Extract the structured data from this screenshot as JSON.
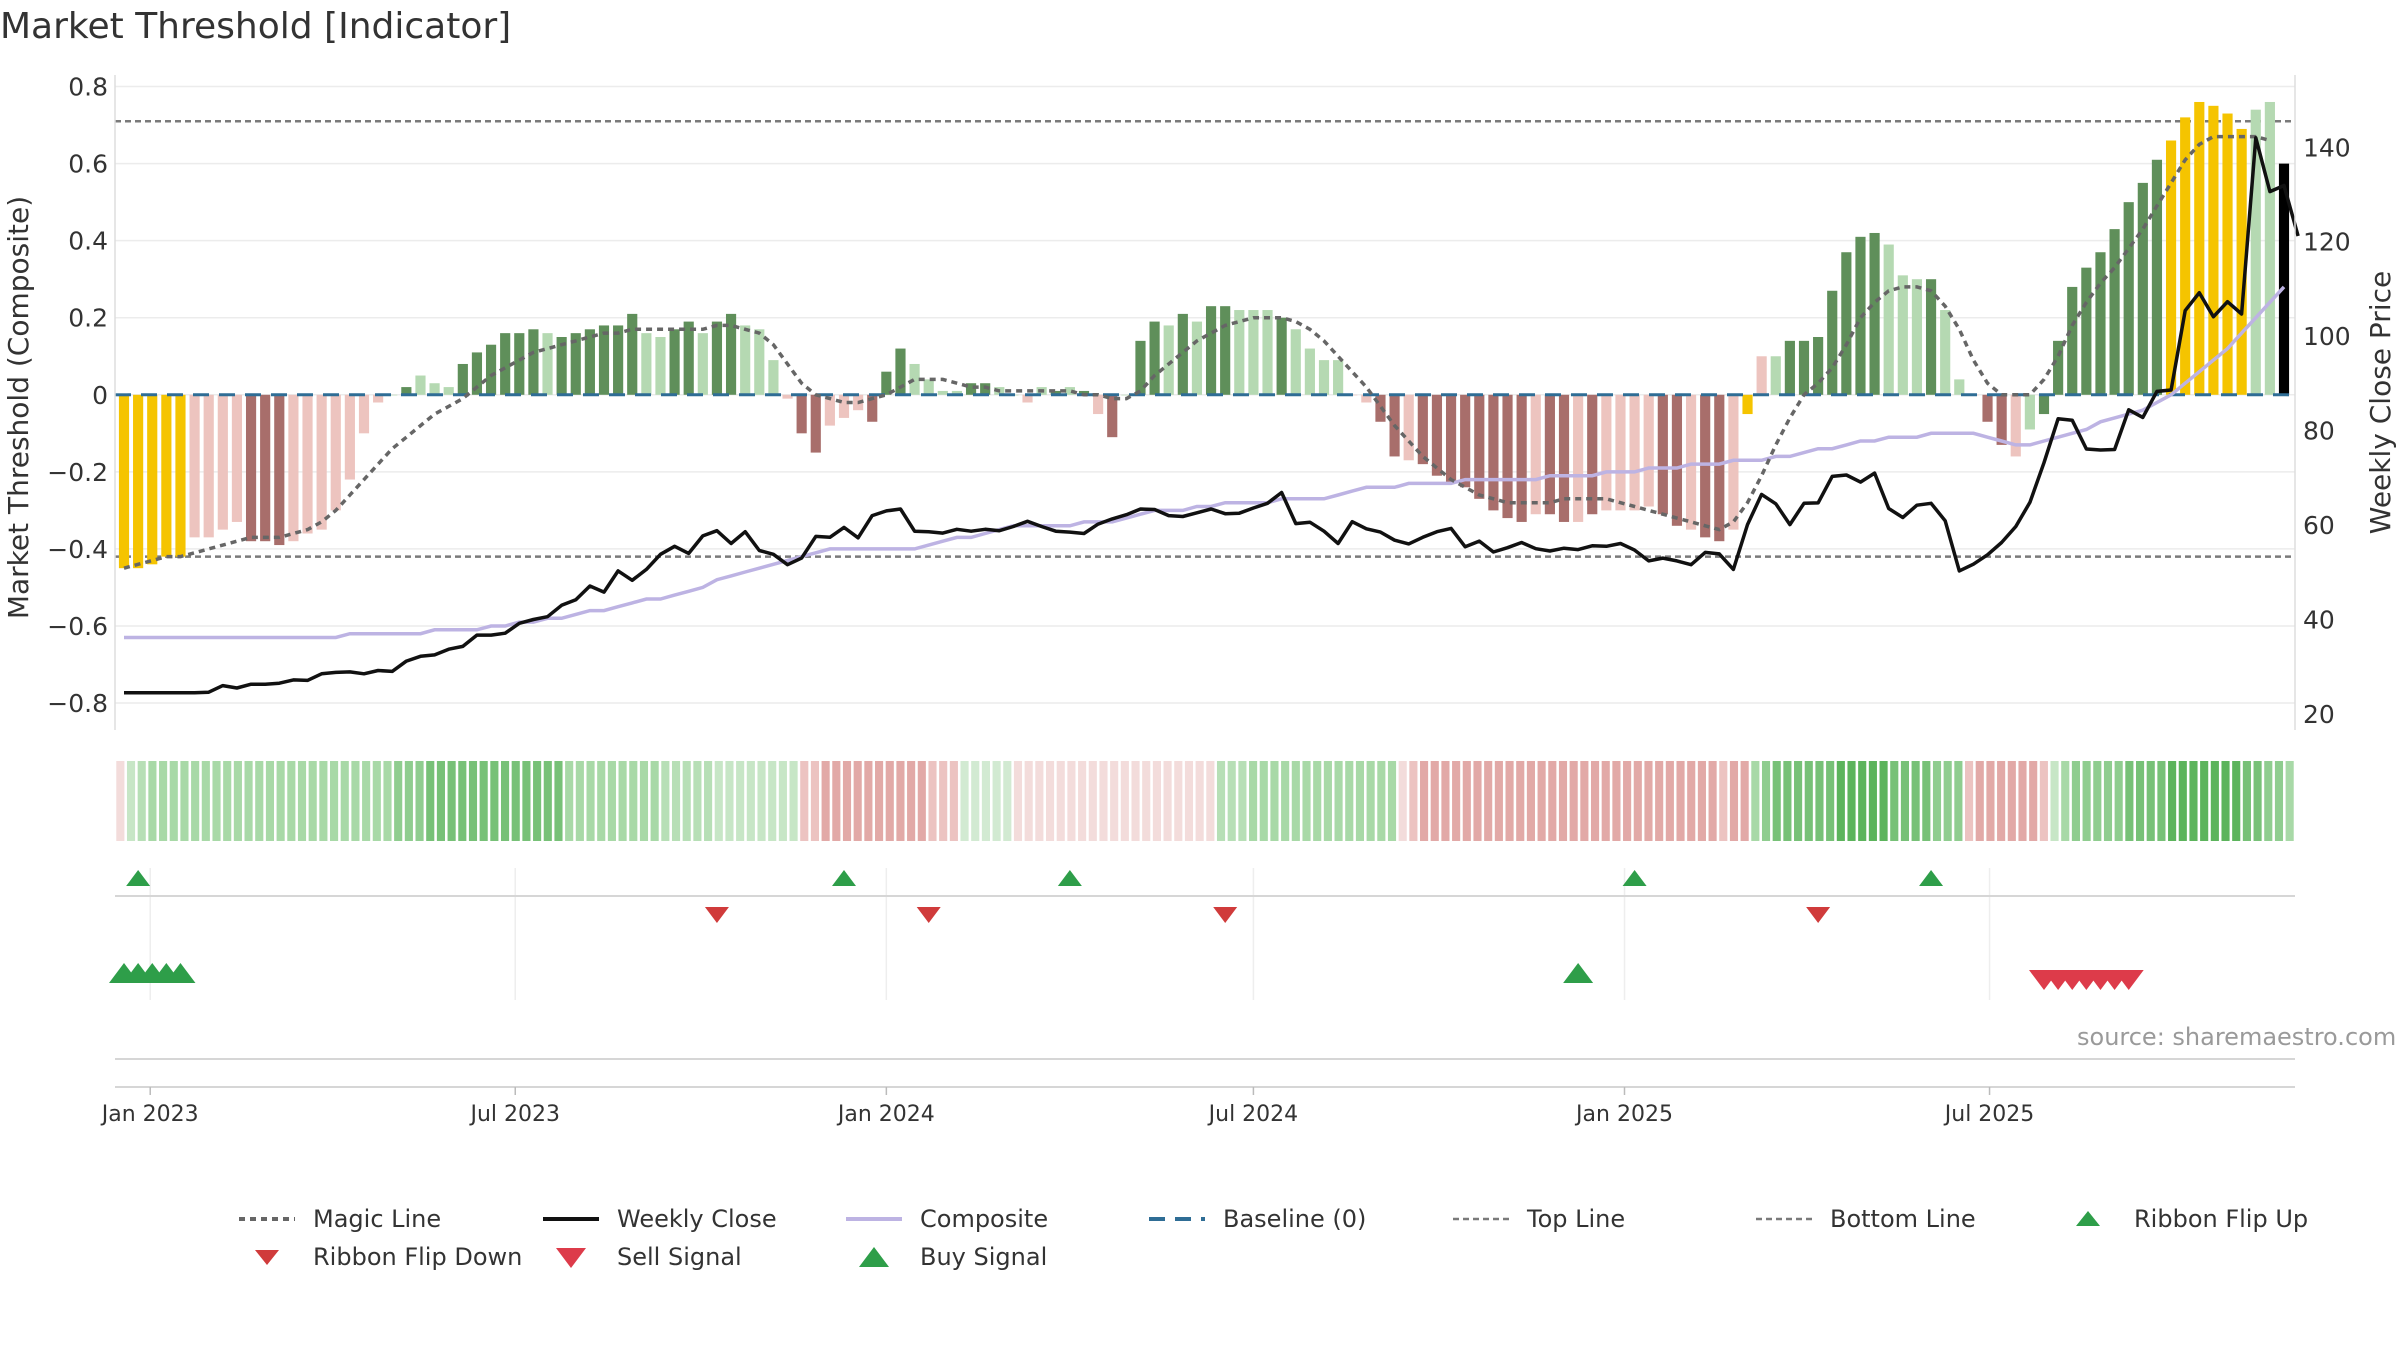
{
  "chart_data": {
    "type": "bar",
    "title": "Market Threshold [Indicator]",
    "ylabel": "Market Threshold (Composite)",
    "y2label": "Weekly Close Price",
    "ylim": [
      -0.87,
      0.83
    ],
    "y2lim": [
      16.6,
      155.3
    ],
    "yticks": [
      "0.8",
      "0.6",
      "0.4",
      "0.2",
      "0",
      "−0.2",
      "−0.4",
      "−0.6",
      "−0.8"
    ],
    "yticks_values": [
      0.8,
      0.6,
      0.4,
      0.2,
      0,
      -0.2,
      -0.4,
      -0.6,
      -0.8
    ],
    "y2ticks": [
      "140",
      "120",
      "100",
      "80",
      "60",
      "40",
      "20"
    ],
    "y2ticks_values": [
      140,
      120,
      100,
      80,
      60,
      40,
      20
    ],
    "xticks": [
      "Jan 2023",
      "Jul 2023",
      "Jan 2024",
      "Jul 2024",
      "Jan 2025",
      "Jul 2025"
    ],
    "xticks_dates": [
      "2023-01-01",
      "2023-07-01",
      "2024-01-01",
      "2024-07-01",
      "2025-01-01",
      "2025-07-01"
    ],
    "start_date": "2022-12-19",
    "interval_days": 7,
    "source": "source: sharemaestro.com",
    "top_line": 0.71,
    "bottom_line": -0.42,
    "bars": [
      -0.45,
      -0.45,
      -0.44,
      -0.42,
      -0.42,
      -0.37,
      -0.37,
      -0.35,
      -0.33,
      -0.38,
      -0.38,
      -0.39,
      -0.38,
      -0.36,
      -0.35,
      -0.3,
      -0.22,
      -0.1,
      -0.02,
      0.0,
      0.02,
      0.05,
      0.03,
      0.02,
      0.08,
      0.11,
      0.13,
      0.16,
      0.16,
      0.17,
      0.16,
      0.15,
      0.16,
      0.17,
      0.18,
      0.18,
      0.21,
      0.16,
      0.15,
      0.17,
      0.19,
      0.16,
      0.19,
      0.21,
      0.18,
      0.17,
      0.09,
      -0.01,
      -0.1,
      -0.15,
      -0.08,
      -0.06,
      -0.04,
      -0.07,
      0.06,
      0.12,
      0.08,
      0.04,
      0.01,
      0.01,
      0.03,
      0.03,
      0.02,
      0.0,
      -0.02,
      0.02,
      0.01,
      0.02,
      0.01,
      -0.05,
      -0.11,
      0.0,
      0.14,
      0.19,
      0.18,
      0.21,
      0.19,
      0.23,
      0.23,
      0.22,
      0.22,
      0.22,
      0.2,
      0.17,
      0.12,
      0.09,
      0.09,
      0.0,
      -0.02,
      -0.07,
      -0.16,
      -0.17,
      -0.18,
      -0.21,
      -0.23,
      -0.24,
      -0.27,
      -0.3,
      -0.32,
      -0.33,
      -0.31,
      -0.31,
      -0.33,
      -0.33,
      -0.31,
      -0.3,
      -0.3,
      -0.3,
      -0.29,
      -0.31,
      -0.34,
      -0.35,
      -0.37,
      -0.38,
      -0.35,
      -0.05,
      0.1,
      0.1,
      0.14,
      0.14,
      0.15,
      0.27,
      0.37,
      0.41,
      0.42,
      0.39,
      0.31,
      0.3,
      0.3,
      0.22,
      0.04,
      0.0,
      -0.07,
      -0.13,
      -0.16,
      -0.09,
      -0.05,
      0.14,
      0.28,
      0.33,
      0.37,
      0.43,
      0.5,
      0.55,
      0.61,
      0.66,
      0.72,
      0.76,
      0.75,
      0.73,
      0.69,
      0.74,
      0.76,
      0.6
    ],
    "bar_colors": [
      "#f5c400",
      "#f5c400",
      "#f5c400",
      "#f5c400",
      "#f5c400",
      "#edc4bf",
      "#edc4bf",
      "#edc4bf",
      "#edc4bf",
      "#a86e6b",
      "#a86e6b",
      "#a86e6b",
      "#edc4bf",
      "#edc4bf",
      "#edc4bf",
      "#edc4bf",
      "#edc4bf",
      "#edc4bf",
      "#edc4bf",
      "#b5d9b2",
      "#5f8f5a",
      "#b5d9b2",
      "#b5d9b2",
      "#b5d9b2",
      "#5f8f5a",
      "#5f8f5a",
      "#5f8f5a",
      "#5f8f5a",
      "#5f8f5a",
      "#5f8f5a",
      "#b5d9b2",
      "#5f8f5a",
      "#5f8f5a",
      "#5f8f5a",
      "#5f8f5a",
      "#5f8f5a",
      "#5f8f5a",
      "#b5d9b2",
      "#b5d9b2",
      "#5f8f5a",
      "#5f8f5a",
      "#b5d9b2",
      "#5f8f5a",
      "#5f8f5a",
      "#b5d9b2",
      "#b5d9b2",
      "#b5d9b2",
      "#edc4bf",
      "#a86e6b",
      "#a86e6b",
      "#edc4bf",
      "#edc4bf",
      "#edc4bf",
      "#a86e6b",
      "#5f8f5a",
      "#5f8f5a",
      "#b5d9b2",
      "#b5d9b2",
      "#b5d9b2",
      "#b5d9b2",
      "#5f8f5a",
      "#5f8f5a",
      "#b5d9b2",
      "#b5d9b2",
      "#edc4bf",
      "#b5d9b2",
      "#5f8f5a",
      "#b5d9b2",
      "#5f8f5a",
      "#edc4bf",
      "#a86e6b",
      "#b5d9b2",
      "#5f8f5a",
      "#5f8f5a",
      "#b5d9b2",
      "#5f8f5a",
      "#b5d9b2",
      "#5f8f5a",
      "#5f8f5a",
      "#b5d9b2",
      "#b5d9b2",
      "#b5d9b2",
      "#5f8f5a",
      "#b5d9b2",
      "#b5d9b2",
      "#b5d9b2",
      "#b5d9b2",
      "#edc4bf",
      "#edc4bf",
      "#a86e6b",
      "#a86e6b",
      "#edc4bf",
      "#a86e6b",
      "#a86e6b",
      "#a86e6b",
      "#a86e6b",
      "#a86e6b",
      "#a86e6b",
      "#a86e6b",
      "#a86e6b",
      "#edc4bf",
      "#a86e6b",
      "#a86e6b",
      "#edc4bf",
      "#a86e6b",
      "#edc4bf",
      "#edc4bf",
      "#edc4bf",
      "#edc4bf",
      "#a86e6b",
      "#a86e6b",
      "#edc4bf",
      "#a86e6b",
      "#a86e6b",
      "#edc4bf",
      "#f5c400",
      "#edc4bf",
      "#b5d9b2",
      "#5f8f5a",
      "#5f8f5a",
      "#5f8f5a",
      "#5f8f5a",
      "#5f8f5a",
      "#5f8f5a",
      "#5f8f5a",
      "#b5d9b2",
      "#b5d9b2",
      "#b5d9b2",
      "#5f8f5a",
      "#b5d9b2",
      "#b5d9b2",
      "#edc4bf",
      "#a86e6b",
      "#a86e6b",
      "#edc4bf",
      "#b5d9b2",
      "#5f8f5a",
      "#5f8f5a",
      "#5f8f5a",
      "#5f8f5a",
      "#5f8f5a",
      "#5f8f5a",
      "#5f8f5a",
      "#5f8f5a",
      "#5f8f5a",
      "#f5c400",
      "#f5c400",
      "#f5c400",
      "#f5c400",
      "#f5c400",
      "#f5c400",
      "#b5d9b2",
      "#b5d9b2"
    ],
    "magic_line": [
      -0.45,
      -0.44,
      -0.43,
      -0.42,
      -0.42,
      -0.41,
      -0.4,
      -0.39,
      -0.38,
      -0.37,
      -0.37,
      -0.37,
      -0.36,
      -0.35,
      -0.33,
      -0.3,
      -0.26,
      -0.22,
      -0.18,
      -0.14,
      -0.11,
      -0.08,
      -0.05,
      -0.03,
      -0.01,
      0.02,
      0.05,
      0.07,
      0.09,
      0.11,
      0.12,
      0.13,
      0.14,
      0.15,
      0.16,
      0.16,
      0.17,
      0.17,
      0.17,
      0.17,
      0.17,
      0.17,
      0.18,
      0.18,
      0.17,
      0.16,
      0.13,
      0.08,
      0.03,
      0.0,
      -0.01,
      -0.02,
      -0.02,
      -0.01,
      0.0,
      0.02,
      0.04,
      0.04,
      0.04,
      0.03,
      0.02,
      0.02,
      0.01,
      0.01,
      0.01,
      0.01,
      0.01,
      0.01,
      0.0,
      0.0,
      -0.01,
      -0.01,
      0.01,
      0.05,
      0.08,
      0.11,
      0.14,
      0.16,
      0.18,
      0.19,
      0.2,
      0.2,
      0.2,
      0.19,
      0.17,
      0.14,
      0.1,
      0.06,
      0.02,
      -0.03,
      -0.08,
      -0.12,
      -0.16,
      -0.19,
      -0.22,
      -0.24,
      -0.26,
      -0.27,
      -0.28,
      -0.28,
      -0.28,
      -0.28,
      -0.27,
      -0.27,
      -0.27,
      -0.27,
      -0.28,
      -0.29,
      -0.3,
      -0.31,
      -0.32,
      -0.33,
      -0.34,
      -0.35,
      -0.33,
      -0.28,
      -0.21,
      -0.13,
      -0.06,
      0.0,
      0.03,
      0.07,
      0.13,
      0.2,
      0.24,
      0.27,
      0.28,
      0.28,
      0.27,
      0.23,
      0.17,
      0.09,
      0.03,
      0.0,
      0.0,
      0.0,
      0.04,
      0.1,
      0.18,
      0.24,
      0.29,
      0.33,
      0.38,
      0.43,
      0.49,
      0.55,
      0.61,
      0.65,
      0.67,
      0.67,
      0.67,
      0.67,
      0.66
    ],
    "weekly_close": [
      24.5,
      24.5,
      24.5,
      24.5,
      24.5,
      24.5,
      24.6,
      26.0,
      25.5,
      26.3,
      26.3,
      26.5,
      27.2,
      27.1,
      28.5,
      28.8,
      28.9,
      28.5,
      29.2,
      29.0,
      31.2,
      32.2,
      32.5,
      33.7,
      34.3,
      36.7,
      36.7,
      37.1,
      39.2,
      40.0,
      40.6,
      43.0,
      44.2,
      47.1,
      45.8,
      50.3,
      48.3,
      50.6,
      53.8,
      55.5,
      54.0,
      57.7,
      58.8,
      56.1,
      58.6,
      54.6,
      53.8,
      51.6,
      53.0,
      57.6,
      57.4,
      59.5,
      57.3,
      62.0,
      63.0,
      63.4,
      58.7,
      58.6,
      58.3,
      59.1,
      58.7,
      59.1,
      58.8,
      59.7,
      60.8,
      59.7,
      58.7,
      58.5,
      58.2,
      60.2,
      61.3,
      62.2,
      63.4,
      63.3,
      62.0,
      61.8,
      62.6,
      63.4,
      62.4,
      62.5,
      63.6,
      64.6,
      66.9,
      60.3,
      60.6,
      58.7,
      56.1,
      60.7,
      59.2,
      58.5,
      56.8,
      56.0,
      57.4,
      58.6,
      59.3,
      55.4,
      56.6,
      54.3,
      55.2,
      56.3,
      55.0,
      54.5,
      55.1,
      54.8,
      55.6,
      55.5,
      56.1,
      54.7,
      52.4,
      53.0,
      52.4,
      51.6,
      54.2,
      53.9,
      50.6,
      60.1,
      66.5,
      64.5,
      60.1,
      64.6,
      64.7,
      70.3,
      70.6,
      69.1,
      71.0,
      63.5,
      61.6,
      64.2,
      64.6,
      60.9,
      50.3,
      51.7,
      53.7,
      56.3,
      59.7,
      64.8,
      73.2,
      82.5,
      82.2,
      76.1,
      75.9,
      76.0,
      84.4,
      82.8,
      88.3,
      88.6,
      105.4,
      109.2,
      104.1,
      107.3,
      104.7,
      142.0,
      130.6,
      131.9,
      121.2
    ],
    "composite": [
      -0.63,
      -0.63,
      -0.63,
      -0.63,
      -0.63,
      -0.63,
      -0.63,
      -0.63,
      -0.63,
      -0.63,
      -0.63,
      -0.63,
      -0.63,
      -0.63,
      -0.63,
      -0.63,
      -0.62,
      -0.62,
      -0.62,
      -0.62,
      -0.62,
      -0.62,
      -0.61,
      -0.61,
      -0.61,
      -0.61,
      -0.6,
      -0.6,
      -0.59,
      -0.59,
      -0.58,
      -0.58,
      -0.57,
      -0.56,
      -0.56,
      -0.55,
      -0.54,
      -0.53,
      -0.53,
      -0.52,
      -0.51,
      -0.5,
      -0.48,
      -0.47,
      -0.46,
      -0.45,
      -0.44,
      -0.43,
      -0.42,
      -0.41,
      -0.4,
      -0.4,
      -0.4,
      -0.4,
      -0.4,
      -0.4,
      -0.4,
      -0.39,
      -0.38,
      -0.37,
      -0.37,
      -0.36,
      -0.35,
      -0.34,
      -0.34,
      -0.34,
      -0.34,
      -0.34,
      -0.33,
      -0.33,
      -0.33,
      -0.32,
      -0.31,
      -0.3,
      -0.3,
      -0.3,
      -0.29,
      -0.29,
      -0.28,
      -0.28,
      -0.28,
      -0.28,
      -0.27,
      -0.27,
      -0.27,
      -0.27,
      -0.26,
      -0.25,
      -0.24,
      -0.24,
      -0.24,
      -0.23,
      -0.23,
      -0.23,
      -0.23,
      -0.22,
      -0.22,
      -0.22,
      -0.22,
      -0.22,
      -0.22,
      -0.21,
      -0.21,
      -0.21,
      -0.21,
      -0.2,
      -0.2,
      -0.2,
      -0.19,
      -0.19,
      -0.19,
      -0.18,
      -0.18,
      -0.18,
      -0.17,
      -0.17,
      -0.17,
      -0.16,
      -0.16,
      -0.15,
      -0.14,
      -0.14,
      -0.13,
      -0.12,
      -0.12,
      -0.11,
      -0.11,
      -0.11,
      -0.1,
      -0.1,
      -0.1,
      -0.1,
      -0.11,
      -0.12,
      -0.13,
      -0.13,
      -0.12,
      -0.11,
      -0.1,
      -0.09,
      -0.07,
      -0.06,
      -0.05,
      -0.04,
      -0.02,
      0.0,
      0.03,
      0.06,
      0.09,
      0.12,
      0.16,
      0.2,
      0.24,
      0.28
    ],
    "baseline": 0,
    "ribbon": {
      "colors": [
        "#f3dcdb",
        "#c7e6c6",
        "#b7dfb6",
        "#a8d9a7",
        "#a8d9a7",
        "#a8d9a7",
        "#a8d9a7",
        "#a8d9a7",
        "#a8d9a7",
        "#a8d9a7",
        "#a8d9a7",
        "#a8d9a7",
        "#a8d9a7",
        "#a8d9a7",
        "#a8d9a7",
        "#a8d9a7",
        "#a8d9a7",
        "#a8d9a7",
        "#a8d9a7",
        "#a8d9a7",
        "#a8d9a7",
        "#a8d9a7",
        "#a8d9a7",
        "#a8d9a7",
        "#a8d9a7",
        "#a8d9a7",
        "#8fcd8f",
        "#8fcd8f",
        "#8fcd8f",
        "#77c177",
        "#77c177",
        "#77c177",
        "#77c177",
        "#77c177",
        "#77c177",
        "#77c177",
        "#77c177",
        "#77c177",
        "#77c177",
        "#77c177",
        "#77c177",
        "#77c177",
        "#a8d9a7",
        "#a8d9a7",
        "#a8d9a7",
        "#a8d9a7",
        "#a8d9a7",
        "#a8d9a7",
        "#a8d9a7",
        "#a8d9a7",
        "#a8d9a7",
        "#b7dfb6",
        "#b7dfb6",
        "#b7dfb6",
        "#b7dfb6",
        "#b7dfb6",
        "#c7e6c6",
        "#c7e6c6",
        "#c7e6c6",
        "#c7e6c6",
        "#c7e6c6",
        "#c7e6c6",
        "#c7e6c6",
        "#c7e6c6",
        "#ecc3c1",
        "#ecc3c1",
        "#e2a9a7",
        "#e2a9a7",
        "#e2a9a7",
        "#e2a9a7",
        "#e2a9a7",
        "#e2a9a7",
        "#e2a9a7",
        "#e2a9a7",
        "#e2a9a7",
        "#e2a9a7",
        "#ecc3c1",
        "#ecc3c1",
        "#ecc3c1",
        "#d2ead2",
        "#d2ead2",
        "#d2ead2",
        "#d2ead2",
        "#d2ead2",
        "#f3dcdb",
        "#f3dcdb",
        "#f3dcdb",
        "#f3dcdb",
        "#f3dcdb",
        "#f3dcdb",
        "#f3dcdb",
        "#f3dcdb",
        "#f3dcdb",
        "#f3dcdb",
        "#f3dcdb",
        "#f3dcdb",
        "#f3dcdb",
        "#f3dcdb",
        "#f3dcdb",
        "#f3dcdb",
        "#f3dcdb",
        "#f3dcdb",
        "#f3dcdb",
        "#b7dfb6",
        "#b7dfb6",
        "#b7dfb6",
        "#a8d9a7",
        "#a8d9a7",
        "#a8d9a7",
        "#a8d9a7",
        "#a8d9a7",
        "#a8d9a7",
        "#a8d9a7",
        "#a8d9a7",
        "#a8d9a7",
        "#a8d9a7",
        "#a8d9a7",
        "#a8d9a7",
        "#a8d9a7",
        "#a8d9a7",
        "#f3dcdb",
        "#ecc3c1",
        "#e2a9a7",
        "#e2a9a7",
        "#e2a9a7",
        "#e2a9a7",
        "#e2a9a7",
        "#e2a9a7",
        "#e2a9a7",
        "#e2a9a7",
        "#e2a9a7",
        "#e2a9a7",
        "#e2a9a7",
        "#e2a9a7",
        "#e2a9a7",
        "#e2a9a7",
        "#e2a9a7",
        "#e2a9a7",
        "#e2a9a7",
        "#e2a9a7",
        "#e2a9a7",
        "#e2a9a7",
        "#e2a9a7",
        "#e2a9a7",
        "#e2a9a7",
        "#e2a9a7",
        "#e2a9a7",
        "#e2a9a7",
        "#e2a9a7",
        "#e2a9a7",
        "#ecc3c1",
        "#e2a9a7",
        "#e2a9a7",
        "#a8d9a7",
        "#8fcd8f",
        "#77c177",
        "#77c177",
        "#77c177",
        "#77c177",
        "#77c177",
        "#77c177",
        "#5cb45c",
        "#5cb45c",
        "#5cb45c",
        "#5cb45c",
        "#5cb45c",
        "#77c177",
        "#77c177",
        "#77c177",
        "#77c177",
        "#8fcd8f",
        "#8fcd8f",
        "#8fcd8f",
        "#ecc3c1",
        "#e2a9a7",
        "#e2a9a7",
        "#e2a9a7",
        "#e2a9a7",
        "#e2a9a7",
        "#e2a9a7",
        "#ecc3c1",
        "#c7e6c6",
        "#a8d9a7",
        "#8fcd8f",
        "#8fcd8f",
        "#8fcd8f",
        "#8fcd8f",
        "#8fcd8f",
        "#77c177",
        "#77c177",
        "#77c177",
        "#77c177",
        "#5cb45c",
        "#5cb45c",
        "#5cb45c",
        "#5cb45c",
        "#5cb45c",
        "#5cb45c",
        "#5cb45c",
        "#77c177",
        "#77c177",
        "#8fcd8f",
        "#8fcd8f",
        "#a8d9a7"
      ]
    },
    "ribbon_flip_up": [
      "2022-12-26",
      "2023-12-11",
      "2024-04-01",
      "2025-01-06",
      "2025-06-02"
    ],
    "ribbon_flip_down": [
      "2023-10-09",
      "2024-01-22",
      "2024-06-17",
      "2025-04-07"
    ],
    "buy_signals": [
      "2022-12-19",
      "2022-12-26",
      "2023-01-02",
      "2023-01-09",
      "2023-01-16",
      "2024-12-09"
    ],
    "sell_signals": [
      "2025-07-28",
      "2025-08-04",
      "2025-08-11",
      "2025-08-18",
      "2025-08-25",
      "2025-09-01",
      "2025-09-08"
    ],
    "legend": {
      "position": "bottom",
      "items": [
        {
          "key": "magic",
          "label": "Magic Line"
        },
        {
          "key": "close",
          "label": "Weekly Close"
        },
        {
          "key": "composite",
          "label": "Composite"
        },
        {
          "key": "baseline",
          "label": "Baseline (0)"
        },
        {
          "key": "top",
          "label": "Top Line"
        },
        {
          "key": "bottom",
          "label": "Bottom Line"
        },
        {
          "key": "flipup",
          "label": "Ribbon Flip Up"
        },
        {
          "key": "flipdown",
          "label": "Ribbon Flip Down"
        },
        {
          "key": "sell",
          "label": "Sell Signal"
        },
        {
          "key": "buy",
          "label": "Buy Signal"
        }
      ]
    },
    "colors": {
      "magic": "#666666",
      "close": "#111111",
      "composite": "#bdb3e3",
      "baseline": "#2f6d95",
      "threshold": "#7a7a7a",
      "flipup": "#2e9e49",
      "flipdown": "#d03b3b",
      "buy": "#2e9e49",
      "sell": "#dd3b4a",
      "grid": "#ececec"
    }
  }
}
